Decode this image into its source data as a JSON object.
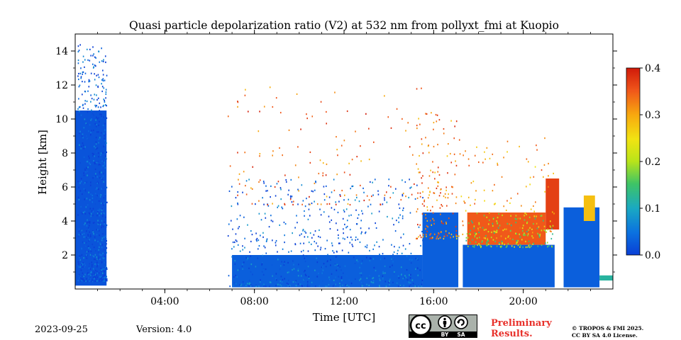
{
  "chart_data": {
    "type": "heatmap",
    "title": "Quasi particle depolarization ratio (V2) at 532 nm from pollyxt_fmi at Kuopio",
    "xlabel": "Time [UTC]",
    "ylabel": "Height [km]",
    "xlim": [
      "00:00",
      "24:00"
    ],
    "ylim": [
      0,
      15
    ],
    "x_ticks": [
      "04:00",
      "08:00",
      "12:00",
      "16:00",
      "20:00"
    ],
    "y_ticks": [
      "2",
      "4",
      "6",
      "8",
      "10",
      "12",
      "14"
    ],
    "colorbar": {
      "min": 0.0,
      "max": 0.4,
      "ticks": [
        "0.0",
        "0.1",
        "0.2",
        "0.3",
        "0.4"
      ],
      "colormap": "jet"
    },
    "regions": [
      {
        "time_start": 0.0,
        "time_end": 1.4,
        "height_bottom": 0.2,
        "height_top": 10.5,
        "value": 0.02
      },
      {
        "time_start": 7.0,
        "time_end": 15.5,
        "height_bottom": 0.1,
        "height_top": 2.0,
        "value": 0.03
      },
      {
        "time_start": 15.5,
        "time_end": 17.1,
        "height_bottom": 0.1,
        "height_top": 4.5,
        "value": 0.03
      },
      {
        "time_start": 17.3,
        "time_end": 21.4,
        "height_bottom": 0.1,
        "height_top": 2.6,
        "value": 0.03
      },
      {
        "time_start": 17.5,
        "time_end": 21.0,
        "height_bottom": 2.6,
        "height_top": 4.5,
        "value": 0.35
      },
      {
        "time_start": 21.0,
        "time_end": 21.6,
        "height_bottom": 3.5,
        "height_top": 6.5,
        "value": 0.37
      },
      {
        "time_start": 21.8,
        "time_end": 23.4,
        "height_bottom": 0.1,
        "height_top": 4.8,
        "value": 0.03
      },
      {
        "time_start": 22.7,
        "time_end": 23.2,
        "height_bottom": 4.0,
        "height_top": 5.5,
        "value": 0.28
      },
      {
        "time_start": 23.4,
        "time_end": 24.0,
        "height_bottom": 0.5,
        "height_top": 0.8,
        "value": 0.12
      }
    ]
  },
  "footer": {
    "date": "2023-09-25",
    "version": "Version: 4.0",
    "license_badge": {
      "main": "cc",
      "by": "BY",
      "sa": "SA",
      "by_icon": "person-icon",
      "sa_icon": "share-alike-icon"
    },
    "preliminary_line1": "Preliminary",
    "preliminary_line2": "Results.",
    "copyright_line1": "© TROPOS & FMI 2025.",
    "copyright_line2": "CC BY SA 4.0 License."
  }
}
